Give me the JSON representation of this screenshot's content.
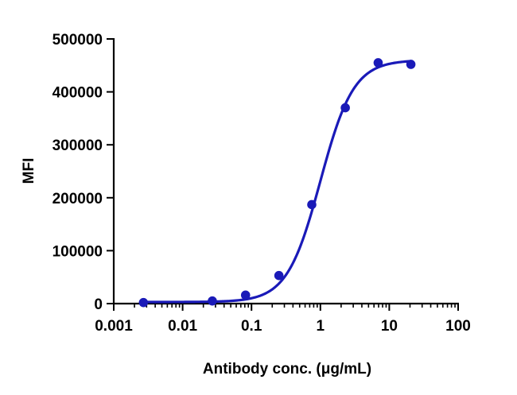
{
  "chart_data": {
    "type": "scatter",
    "title": "",
    "xlabel": "Antibody conc. (μg/mL)",
    "ylabel": "MFI",
    "x_scale": "log",
    "xlim": [
      0.001,
      100
    ],
    "ylim": [
      0,
      500000
    ],
    "x_ticks": [
      "0.001",
      "0.01",
      "0.1",
      "1",
      "10",
      "100"
    ],
    "x_tick_values": [
      0.001,
      0.01,
      0.1,
      1,
      10,
      100
    ],
    "y_ticks": [
      "0",
      "100000",
      "200000",
      "300000",
      "400000",
      "500000"
    ],
    "y_tick_values": [
      0,
      100000,
      200000,
      300000,
      400000,
      500000
    ],
    "grid": false,
    "legend": "none",
    "series": [
      {
        "color": "#1a1ab8",
        "points": [
          {
            "x": 0.0027,
            "y": 2000
          },
          {
            "x": 0.027,
            "y": 5000
          },
          {
            "x": 0.082,
            "y": 16000
          },
          {
            "x": 0.25,
            "y": 53000
          },
          {
            "x": 0.75,
            "y": 187000
          },
          {
            "x": 2.3,
            "y": 370000
          },
          {
            "x": 6.9,
            "y": 455000
          },
          {
            "x": 20.6,
            "y": 452000
          }
        ],
        "fit": {
          "model": "4PL",
          "bottom": 3000,
          "top": 460000,
          "ec50": 1.0,
          "hill": 1.8,
          "x_range": [
            0.0027,
            20.6
          ]
        }
      }
    ]
  }
}
